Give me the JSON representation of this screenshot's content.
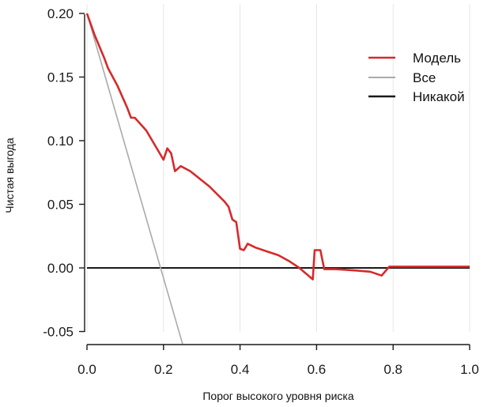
{
  "chart_data": {
    "type": "line",
    "title": "",
    "xlabel": "Порог высокого уровня риска",
    "ylabel": "Чистая выгода",
    "xlim": [
      0.0,
      1.0
    ],
    "ylim": [
      -0.06,
      0.2
    ],
    "x_ticks": [
      0.0,
      0.2,
      0.4,
      0.6,
      0.8,
      1.0
    ],
    "x_tick_labels": [
      "0.0",
      "0.2",
      "0.4",
      "0.6",
      "0.8",
      "1.0"
    ],
    "y_ticks": [
      -0.05,
      0.0,
      0.05,
      0.1,
      0.15,
      0.2
    ],
    "y_tick_labels": [
      "-0.05",
      "0.00",
      "0.05",
      "0.10",
      "0.15",
      "0.20"
    ],
    "grid": "vertical",
    "legend_position": "top-right",
    "series": [
      {
        "name": "Модель",
        "color": "#d62a2a",
        "points": [
          [
            0.0,
            0.2
          ],
          [
            0.02,
            0.183
          ],
          [
            0.045,
            0.165
          ],
          [
            0.055,
            0.157
          ],
          [
            0.08,
            0.143
          ],
          [
            0.105,
            0.126
          ],
          [
            0.115,
            0.118
          ],
          [
            0.125,
            0.118
          ],
          [
            0.155,
            0.108
          ],
          [
            0.2,
            0.085
          ],
          [
            0.21,
            0.094
          ],
          [
            0.22,
            0.09
          ],
          [
            0.23,
            0.076
          ],
          [
            0.245,
            0.08
          ],
          [
            0.27,
            0.076
          ],
          [
            0.32,
            0.064
          ],
          [
            0.36,
            0.052
          ],
          [
            0.37,
            0.048
          ],
          [
            0.38,
            0.038
          ],
          [
            0.39,
            0.036
          ],
          [
            0.4,
            0.015
          ],
          [
            0.41,
            0.014
          ],
          [
            0.42,
            0.019
          ],
          [
            0.44,
            0.016
          ],
          [
            0.47,
            0.013
          ],
          [
            0.5,
            0.01
          ],
          [
            0.53,
            0.005
          ],
          [
            0.555,
            0.0
          ],
          [
            0.59,
            -0.009
          ],
          [
            0.595,
            0.014
          ],
          [
            0.61,
            0.014
          ],
          [
            0.62,
            -0.001
          ],
          [
            0.65,
            -0.001
          ],
          [
            0.7,
            -0.002
          ],
          [
            0.74,
            -0.003
          ],
          [
            0.77,
            -0.006
          ],
          [
            0.79,
            0.001
          ],
          [
            0.82,
            0.001
          ],
          [
            1.0,
            0.001
          ]
        ]
      },
      {
        "name": "Все",
        "color": "#aaaaaa",
        "points": [
          [
            0.0,
            0.2
          ],
          [
            0.25,
            -0.06
          ]
        ]
      },
      {
        "name": "Никакой",
        "color": "#1a1a1a",
        "points": [
          [
            0.0,
            0.0
          ],
          [
            1.0,
            0.0
          ]
        ]
      }
    ]
  }
}
